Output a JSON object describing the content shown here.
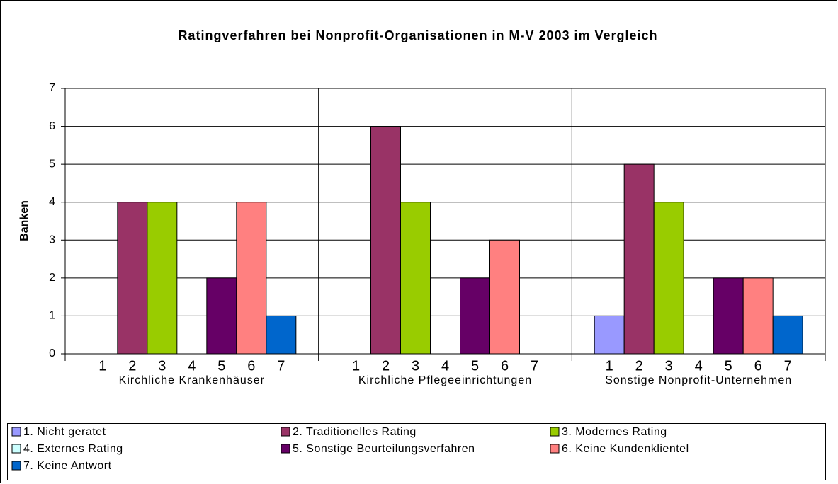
{
  "chart_data": {
    "type": "bar",
    "title": "Ratingverfahren bei Nonprofit-Organisationen in M-V 2003 im Vergleich",
    "y_label": "Banken",
    "categories": [
      "Kirchliche Krankenhäuser",
      "Kirchliche Pflegeeinrichtungen",
      "Sonstige Nonprofit-Unternehmen"
    ],
    "bar_labels": [
      "1",
      "2",
      "3",
      "4",
      "5",
      "6",
      "7"
    ],
    "series": [
      {
        "name": "1. Nicht geratet",
        "color": "#9999ff",
        "values": [
          0,
          0,
          1
        ]
      },
      {
        "name": "2. Traditionelles Rating",
        "color": "#993366",
        "values": [
          4,
          6,
          5
        ]
      },
      {
        "name": "3. Modernes Rating",
        "color": "#99cc00",
        "values": [
          4,
          4,
          4
        ]
      },
      {
        "name": "4. Externes Rating",
        "color": "#ccffff",
        "values": [
          0,
          0,
          0
        ]
      },
      {
        "name": "5. Sonstige Beurteilungsverfahren",
        "color": "#660066",
        "values": [
          2,
          2,
          2
        ]
      },
      {
        "name": "6. Keine Kundenklientel",
        "color": "#ff8080",
        "values": [
          4,
          3,
          2
        ]
      },
      {
        "name": "7. Keine Antwort",
        "color": "#0066cc",
        "values": [
          1,
          0,
          1
        ]
      }
    ],
    "ylim": [
      0,
      7
    ],
    "yticks": [
      0,
      1,
      2,
      3,
      4,
      5,
      6,
      7
    ],
    "grid": true
  }
}
